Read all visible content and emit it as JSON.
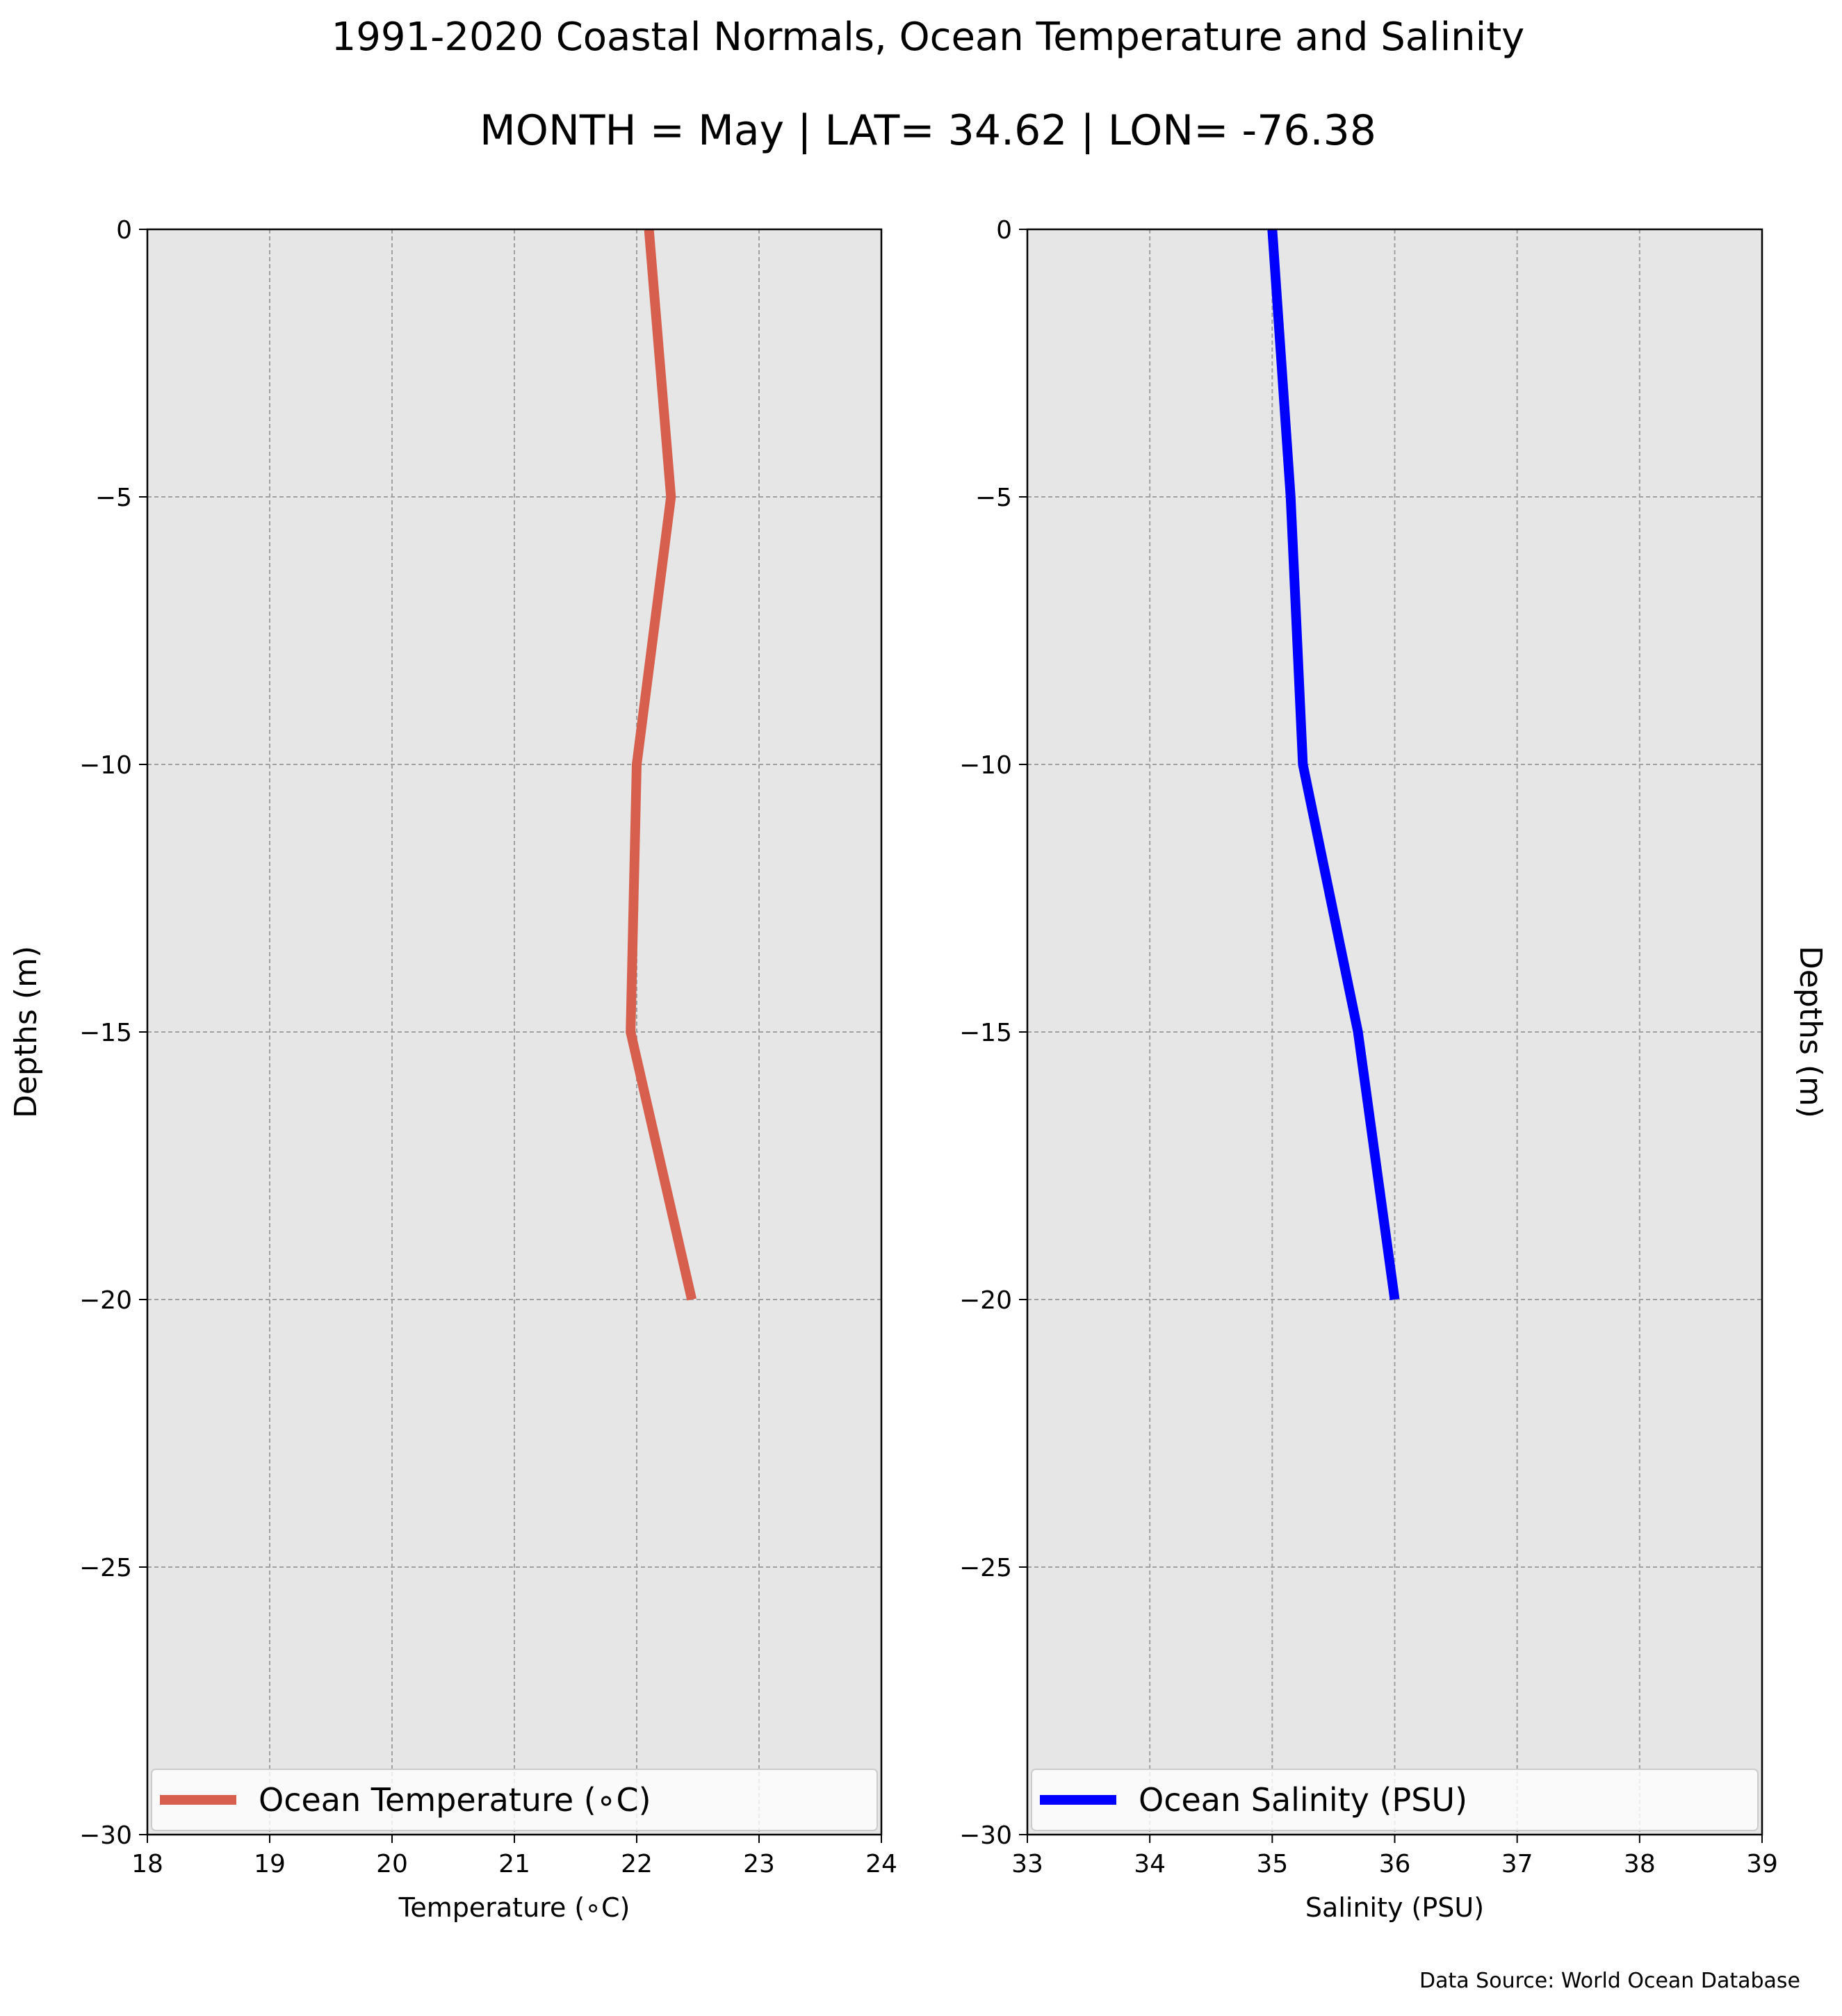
{
  "title": "1991-2020 Coastal Normals, Ocean Temperature and Salinity",
  "subtitle": "MONTH = May | LAT= 34.62 | LON= -76.38",
  "source_note": "Data Source: World Ocean Database",
  "colors": {
    "background": "#e6e6e6",
    "grid": "#a0a0a0",
    "temperature": "#d6604d",
    "salinity": "#0000ff"
  },
  "chart_data": [
    {
      "type": "line",
      "xlabel": "Temperature ($^\\circ$C)",
      "xlabel_display": "Temperature (∘C)",
      "ylabel": "Depths (m)",
      "ylabel_side": "left",
      "xlim": [
        18,
        24
      ],
      "ylim": [
        -30,
        0
      ],
      "xticks": [
        "18",
        "19",
        "20",
        "21",
        "22",
        "23",
        "24"
      ],
      "yticks": [
        "0",
        "−5",
        "−10",
        "−15",
        "−20",
        "−25",
        "−30"
      ],
      "grid": true,
      "legend_position": "bottom",
      "series": [
        {
          "name": "Ocean Temperature (∘C)",
          "color": "#d6604d",
          "x": [
            22.1,
            22.28,
            22.0,
            21.95,
            22.45
          ],
          "y": [
            0,
            -5,
            -10,
            -15,
            -20
          ]
        }
      ]
    },
    {
      "type": "line",
      "xlabel": "Salinity (PSU)",
      "xlabel_display": "Salinity (PSU)",
      "ylabel": "Depths (m)",
      "ylabel_side": "right",
      "xlim": [
        33,
        39
      ],
      "ylim": [
        -30,
        0
      ],
      "xticks": [
        "33",
        "34",
        "35",
        "36",
        "37",
        "38",
        "39"
      ],
      "yticks": [
        "0",
        "−5",
        "−10",
        "−15",
        "−20",
        "−25",
        "−30"
      ],
      "grid": true,
      "legend_position": "bottom",
      "series": [
        {
          "name": "Ocean Salinity (PSU)",
          "color": "#0000ff",
          "x": [
            35.0,
            35.15,
            35.25,
            35.7,
            36.0
          ],
          "y": [
            0,
            -5,
            -10,
            -15,
            -20
          ]
        }
      ]
    }
  ]
}
